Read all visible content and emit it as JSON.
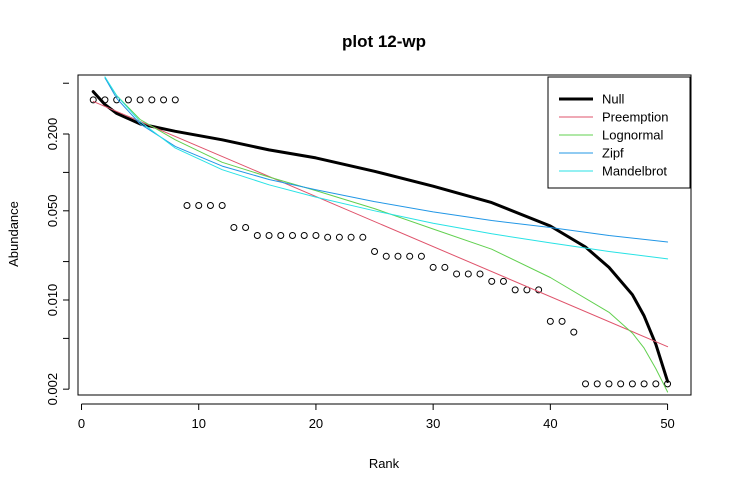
{
  "chart_data": {
    "type": "scatter",
    "title": "plot 12-wp",
    "xlabel": "Rank",
    "ylabel": "Abundance",
    "x_scale": "linear",
    "y_scale": "log",
    "xlim": [
      -0.3,
      52.0
    ],
    "ylim": [
      0.0018,
      0.58
    ],
    "x_ticks": [
      0,
      10,
      20,
      30,
      40,
      50
    ],
    "x_tick_labels": [
      "0",
      "10",
      "20",
      "30",
      "40",
      "50"
    ],
    "y_ticks": [
      0.002,
      0.01,
      0.05,
      0.2
    ],
    "y_tick_labels": [
      "0.002",
      "0.010",
      "0.050",
      "0.200"
    ],
    "grid": false,
    "legend_position": "top-right",
    "observed": {
      "ranks": [
        1,
        2,
        3,
        4,
        5,
        6,
        7,
        8,
        9,
        10,
        11,
        12,
        13,
        14,
        15,
        16,
        17,
        18,
        19,
        20,
        21,
        22,
        23,
        24,
        25,
        26,
        27,
        28,
        29,
        30,
        31,
        32,
        33,
        34,
        35,
        36,
        37,
        38,
        39,
        40,
        41,
        42,
        43,
        44,
        45,
        46,
        47,
        48,
        49,
        50
      ],
      "values": [
        0.37,
        0.37,
        0.37,
        0.37,
        0.37,
        0.37,
        0.37,
        0.37,
        0.055,
        0.055,
        0.055,
        0.055,
        0.037,
        0.037,
        0.032,
        0.032,
        0.032,
        0.032,
        0.032,
        0.032,
        0.031,
        0.031,
        0.031,
        0.031,
        0.024,
        0.022,
        0.022,
        0.022,
        0.022,
        0.018,
        0.018,
        0.016,
        0.016,
        0.016,
        0.014,
        0.014,
        0.012,
        0.012,
        0.012,
        0.0068,
        0.0068,
        0.0056,
        0.0022,
        0.0022,
        0.0022,
        0.0022,
        0.0022,
        0.0022,
        0.0022,
        0.0022
      ]
    },
    "series": [
      {
        "name": "Null",
        "color": "#000000",
        "lineWidth": 3,
        "x": [
          1,
          2,
          3,
          5,
          8,
          12,
          16,
          20,
          25,
          30,
          35,
          40,
          43,
          45,
          47,
          48,
          49,
          50
        ],
        "y": [
          0.43,
          0.34,
          0.29,
          0.24,
          0.21,
          0.18,
          0.15,
          0.13,
          0.102,
          0.078,
          0.058,
          0.038,
          0.026,
          0.018,
          0.011,
          0.0075,
          0.0045,
          0.0023
        ]
      },
      {
        "name": "Preemption",
        "color": "#DF536B",
        "lineWidth": 1,
        "x": [
          1,
          50
        ],
        "y": [
          0.36,
          0.0043
        ]
      },
      {
        "name": "Lognormal",
        "color": "#61D04F",
        "lineWidth": 1,
        "x": [
          2,
          3,
          5,
          8,
          12,
          16,
          20,
          25,
          30,
          35,
          40,
          45,
          47,
          48,
          49,
          50
        ],
        "y": [
          0.55,
          0.4,
          0.26,
          0.18,
          0.12,
          0.092,
          0.072,
          0.052,
          0.036,
          0.025,
          0.015,
          0.008,
          0.0055,
          0.0042,
          0.0029,
          0.0019
        ]
      },
      {
        "name": "Zipf",
        "color": "#2297E6",
        "lineWidth": 1,
        "x": [
          2,
          3,
          5,
          8,
          12,
          16,
          20,
          25,
          30,
          35,
          40,
          45,
          50
        ],
        "y": [
          0.55,
          0.38,
          0.24,
          0.16,
          0.112,
          0.088,
          0.073,
          0.059,
          0.049,
          0.042,
          0.037,
          0.032,
          0.0285
        ]
      },
      {
        "name": "Mandelbrot",
        "color": "#28E2E5",
        "lineWidth": 1,
        "x": [
          2,
          3,
          5,
          8,
          12,
          16,
          20,
          25,
          30,
          35,
          40,
          45,
          50
        ],
        "y": [
          0.56,
          0.4,
          0.25,
          0.155,
          0.105,
          0.08,
          0.064,
          0.05,
          0.04,
          0.033,
          0.028,
          0.024,
          0.021
        ]
      }
    ]
  }
}
